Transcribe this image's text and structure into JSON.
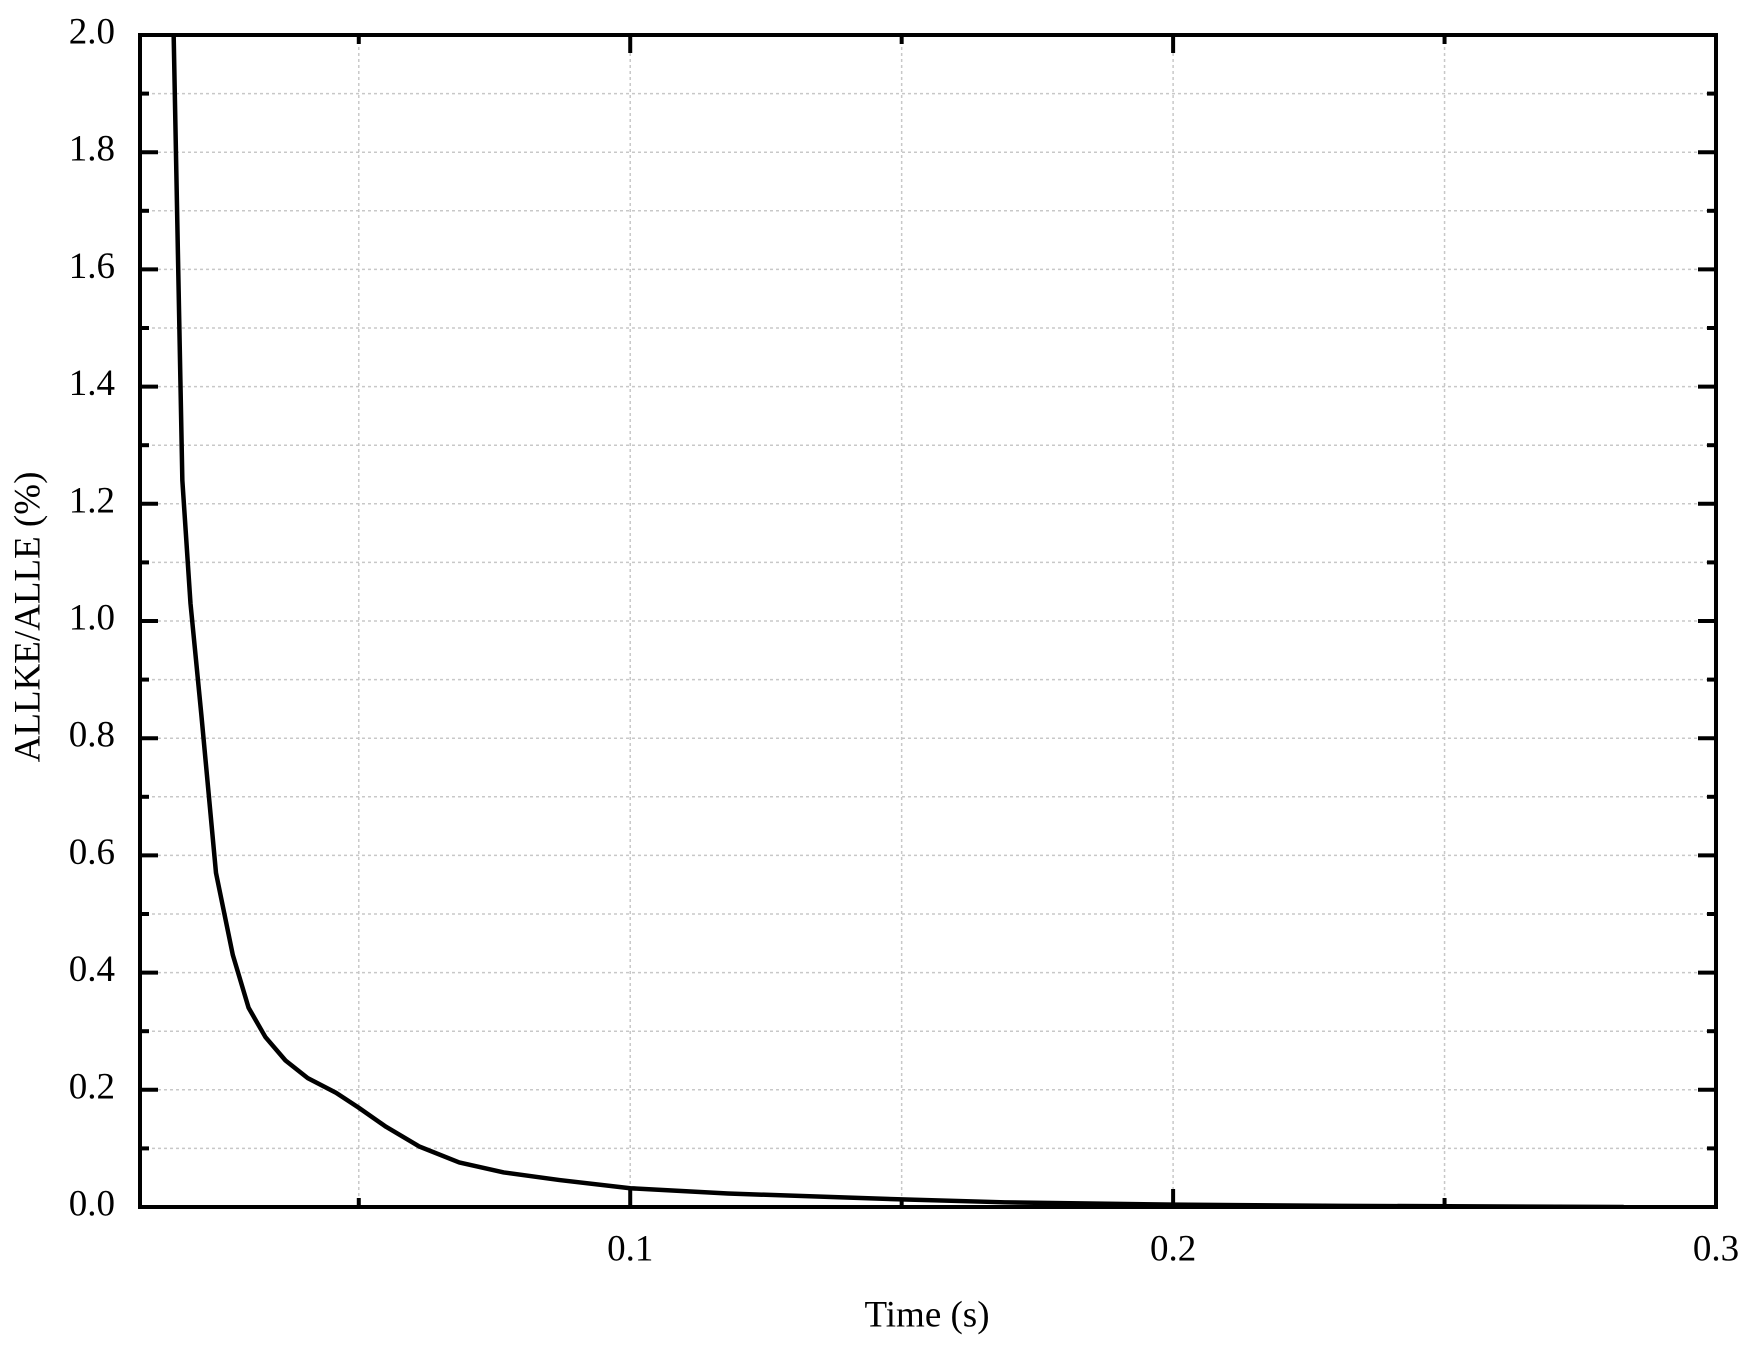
{
  "chart_data": {
    "type": "line",
    "x_label": "Time (s)",
    "y_label": "ALLKE/ALLE (%)",
    "xlim": [
      0.0097,
      0.3
    ],
    "ylim": [
      0,
      2.0
    ],
    "xticks": [
      0.1,
      0.2,
      0.3
    ],
    "xticks_minor": [
      0.05,
      0.15,
      0.25
    ],
    "yticks": [
      {
        "value": 0,
        "label": "0.0"
      },
      0.2,
      0.4,
      0.6,
      0.8,
      {
        "value": 1,
        "label": "1.0"
      },
      1.2,
      1.4,
      1.6,
      1.8,
      {
        "value": 2,
        "label": "2.0"
      }
    ],
    "yticks_minor": [
      0.1,
      0.3,
      0.5,
      0.7,
      0.9,
      1.1,
      1.3,
      1.5,
      1.7,
      1.9
    ],
    "grid": true,
    "series": [
      {
        "name": "ALLKE/ALLE",
        "color": "#000000",
        "x": [
          0.0159,
          0.0175,
          0.019,
          0.021,
          0.0237,
          0.0268,
          0.0297,
          0.0328,
          0.0365,
          0.0406,
          0.0458,
          0.0499,
          0.055,
          0.0612,
          0.0685,
          0.0767,
          0.087,
          0.1,
          0.118,
          0.15,
          0.169,
          0.2,
          0.231,
          0.283
        ],
        "values": [
          2.0,
          1.24,
          1.03,
          0.84,
          0.57,
          0.43,
          0.34,
          0.29,
          0.25,
          0.22,
          0.195,
          0.17,
          0.137,
          0.103,
          0.076,
          0.059,
          0.046,
          0.032,
          0.023,
          0.013,
          0.008,
          0.004,
          0.002,
          0.0
        ]
      }
    ]
  }
}
